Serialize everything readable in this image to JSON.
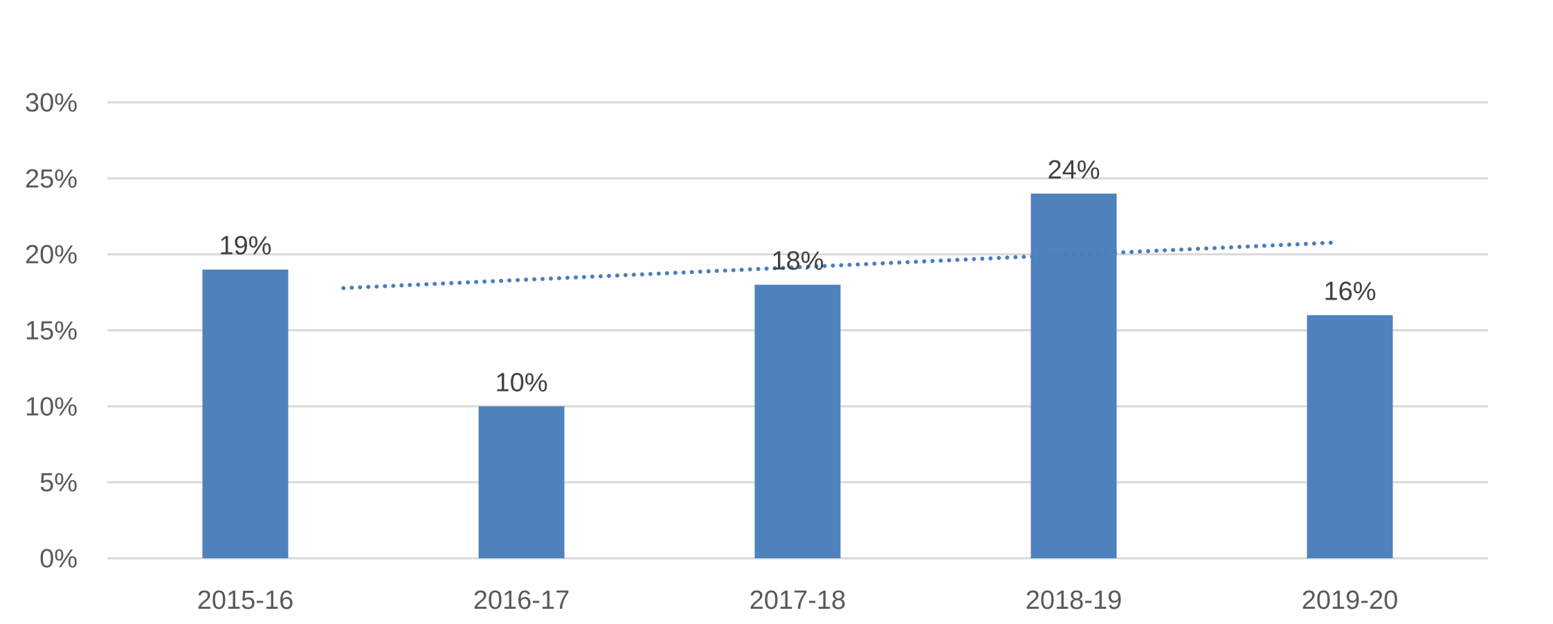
{
  "chart_data": {
    "type": "bar",
    "categories": [
      "2015-16",
      "2016-17",
      "2017-18",
      "2018-19",
      "2019-20"
    ],
    "values": [
      19,
      10,
      18,
      24,
      16
    ],
    "data_labels": [
      "19%",
      "10%",
      "18%",
      "24%",
      "16%"
    ],
    "y_ticks": [
      0,
      5,
      10,
      15,
      20,
      25,
      30
    ],
    "y_tick_labels": [
      "0%",
      "5%",
      "10%",
      "15%",
      "20%",
      "25%",
      "30%"
    ],
    "ylim": [
      0,
      30
    ],
    "grid": true,
    "legend": "none",
    "trendline": {
      "type": "linear",
      "style": "dotted"
    },
    "colors": {
      "bar": "#4f81bd",
      "trendline": "#4a7ebb",
      "grid": "#d9d9d9"
    }
  }
}
